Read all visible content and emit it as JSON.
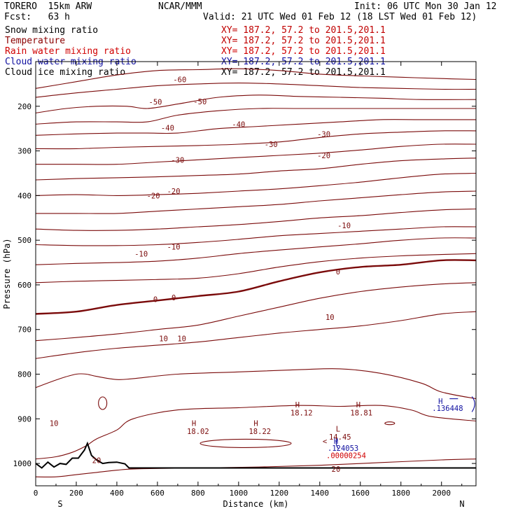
{
  "header": {
    "model": "TORERO  15km ARW",
    "org": "NCAR/MMM",
    "init": "Init: 06 UTC Mon 30 Jan 12",
    "fcst": "Fcst:   63 h",
    "valid": "Valid: 21 UTC Wed 01 Feb 12 (18 LST Wed 01 Feb 12)"
  },
  "legend": [
    {
      "label": "Snow mixing ratio",
      "color": "#000000",
      "xy": "XY= 187.2, 57.2 to 201.5,201.1",
      "xy_color": "#c00000"
    },
    {
      "label": "Temperature",
      "color": "#8b0000",
      "xy": "XY= 187.2, 57.2 to 201.5,201.1",
      "xy_color": "#c00000"
    },
    {
      "label": "Rain water mixing ratio",
      "color": "#d00000",
      "xy": "XY= 187.2, 57.2 to 201.5,201.1",
      "xy_color": "#d00000"
    },
    {
      "label": "Cloud water mixing ratio",
      "color": "#1010a0",
      "xy": "XY= 187.2, 57.2 to 201.5,201.1",
      "xy_color": "#1010a0"
    },
    {
      "label": "Cloud ice mixing ratio",
      "color": "#000000",
      "xy": "XY= 187.2, 57.2 to 201.5,201.1",
      "xy_color": "#000000"
    }
  ],
  "chart_data": {
    "type": "line",
    "title": "",
    "xlabel": "Distance (km)",
    "ylabel": "Pressure (hPa)",
    "xlim": [
      0,
      2170
    ],
    "ylim": [
      100,
      1050
    ],
    "x_ticks": [
      0,
      200,
      400,
      600,
      800,
      1000,
      1200,
      1400,
      1600,
      1800,
      2000
    ],
    "y_ticks": [
      200,
      300,
      400,
      500,
      600,
      700,
      800,
      900,
      1000
    ],
    "endpoints": {
      "left": "S",
      "right": "N"
    },
    "colors": {
      "temperature": "#7a0a0a",
      "terrain": "#000000",
      "cloud": "#1010a0",
      "rain": "#d00000",
      "frame": "#000000"
    },
    "temperature_contours": [
      {
        "level": -60,
        "x": [
          0,
          200,
          400,
          600,
          800,
          1000,
          1200,
          1400,
          1600,
          1800,
          2000,
          2170
        ],
        "p": [
          160,
          145,
          130,
          120,
          118,
          116,
          120,
          128,
          132,
          135,
          138,
          140
        ]
      },
      {
        "level": -55,
        "x": [
          0,
          200,
          400,
          600,
          800,
          1000,
          1200,
          1400,
          1600,
          1800,
          2000,
          2170
        ],
        "p": [
          180,
          170,
          162,
          154,
          150,
          148,
          150,
          154,
          158,
          160,
          162,
          162
        ]
      },
      {
        "level": -50,
        "x": [
          0,
          150,
          300,
          450,
          550,
          700,
          900,
          1100,
          1300,
          1500,
          1700,
          1900,
          2170
        ],
        "p": [
          215,
          205,
          200,
          200,
          205,
          195,
          180,
          175,
          178,
          180,
          182,
          185,
          185
        ]
      },
      {
        "level": -45,
        "x": [
          0,
          200,
          400,
          550,
          700,
          900,
          1100,
          1300,
          1500,
          1700,
          1900,
          2170
        ],
        "p": [
          240,
          235,
          235,
          235,
          220,
          210,
          205,
          205,
          205,
          205,
          205,
          205
        ]
      },
      {
        "level": -40,
        "x": [
          0,
          200,
          400,
          550,
          700,
          900,
          1100,
          1300,
          1500,
          1700,
          1900,
          2170
        ],
        "p": [
          265,
          262,
          260,
          260,
          260,
          250,
          245,
          240,
          235,
          230,
          230,
          230
        ]
      },
      {
        "level": -35,
        "x": [
          0,
          200,
          400,
          600,
          800,
          1000,
          1200,
          1400,
          1600,
          1800,
          2000,
          2170
        ],
        "p": [
          295,
          295,
          292,
          290,
          288,
          285,
          280,
          270,
          262,
          258,
          255,
          255
        ]
      },
      {
        "level": -30,
        "x": [
          0,
          200,
          400,
          600,
          800,
          1000,
          1200,
          1400,
          1600,
          1800,
          2000,
          2170
        ],
        "p": [
          330,
          330,
          330,
          325,
          320,
          315,
          310,
          305,
          298,
          290,
          285,
          285
        ]
      },
      {
        "level": -25,
        "x": [
          0,
          200,
          400,
          600,
          800,
          1000,
          1200,
          1400,
          1600,
          1800,
          2000,
          2170
        ],
        "p": [
          365,
          362,
          360,
          358,
          355,
          352,
          345,
          340,
          330,
          322,
          318,
          316
        ]
      },
      {
        "level": -20,
        "x": [
          0,
          200,
          400,
          600,
          800,
          1000,
          1200,
          1400,
          1600,
          1800,
          2000,
          2170
        ],
        "p": [
          400,
          398,
          400,
          398,
          395,
          390,
          385,
          378,
          370,
          360,
          352,
          350
        ]
      },
      {
        "level": -15,
        "x": [
          0,
          200,
          400,
          600,
          800,
          1000,
          1200,
          1400,
          1600,
          1800,
          2000,
          2170
        ],
        "p": [
          440,
          440,
          440,
          435,
          430,
          425,
          420,
          412,
          405,
          398,
          392,
          390
        ]
      },
      {
        "level": -10,
        "x": [
          0,
          200,
          400,
          600,
          800,
          1000,
          1200,
          1400,
          1600,
          1800,
          2000,
          2170
        ],
        "p": [
          475,
          478,
          478,
          475,
          470,
          465,
          458,
          450,
          445,
          438,
          432,
          430
        ]
      },
      {
        "level": -5,
        "x": [
          0,
          200,
          400,
          600,
          800,
          1000,
          1200,
          1400,
          1600,
          1800,
          2000,
          2170
        ],
        "p": [
          510,
          512,
          512,
          510,
          505,
          498,
          490,
          485,
          480,
          475,
          470,
          470
        ]
      },
      {
        "level": -10,
        "x": [
          0,
          200,
          400,
          600,
          800,
          1000,
          1200,
          1400,
          1600,
          1800,
          2000,
          2170
        ],
        "p": [
          555,
          552,
          550,
          547,
          540,
          530,
          522,
          515,
          508,
          500,
          495,
          495
        ]
      },
      {
        "level": -5,
        "x": [
          0,
          200,
          400,
          600,
          800,
          1000,
          1200,
          1400,
          1600,
          1800,
          2000,
          2170
        ],
        "p": [
          595,
          592,
          590,
          588,
          585,
          575,
          560,
          548,
          540,
          535,
          532,
          530
        ]
      },
      {
        "level": 0,
        "x": [
          0,
          200,
          400,
          600,
          800,
          1000,
          1200,
          1400,
          1600,
          1800,
          2000,
          2170
        ],
        "p": [
          665,
          660,
          645,
          635,
          625,
          615,
          592,
          572,
          560,
          555,
          545,
          545
        ]
      },
      {
        "level": 5,
        "x": [
          0,
          200,
          400,
          600,
          800,
          1000,
          1200,
          1400,
          1600,
          1800,
          2000,
          2170
        ],
        "p": [
          725,
          718,
          710,
          700,
          690,
          670,
          650,
          630,
          615,
          605,
          598,
          595
        ]
      },
      {
        "level": 10,
        "x": [
          0,
          200,
          400,
          600,
          800,
          1000,
          1200,
          1400,
          1600,
          1800,
          2000,
          2170
        ],
        "p": [
          765,
          752,
          742,
          735,
          728,
          718,
          708,
          700,
          692,
          680,
          665,
          660
        ]
      }
    ],
    "terrain": {
      "x": [
        0,
        30,
        60,
        90,
        120,
        150,
        180,
        210,
        240,
        255,
        275,
        300,
        330,
        360,
        400,
        440,
        460,
        480,
        2170
      ],
      "p": [
        1000,
        1010,
        997,
        1008,
        1000,
        1002,
        988,
        988,
        970,
        955,
        982,
        992,
        1000,
        998,
        997,
        1001,
        1010,
        1010,
        1010
      ]
    },
    "contour_labels": [
      {
        "text": "-60",
        "x": 710,
        "p": 140
      },
      {
        "text": "-50",
        "x": 590,
        "p": 190
      },
      {
        "text": "-50",
        "x": 810,
        "p": 189
      },
      {
        "text": "-40",
        "x": 650,
        "p": 248
      },
      {
        "text": "-40",
        "x": 1000,
        "p": 240
      },
      {
        "text": "-30",
        "x": 1160,
        "p": 285
      },
      {
        "text": "-30",
        "x": 1420,
        "p": 262
      },
      {
        "text": "-30",
        "x": 700,
        "p": 320
      },
      {
        "text": "-20",
        "x": 1420,
        "p": 310
      },
      {
        "text": "-20",
        "x": 680,
        "p": 390
      },
      {
        "text": "-20",
        "x": 580,
        "p": 400
      },
      {
        "text": "-10",
        "x": 1520,
        "p": 467
      },
      {
        "text": "-10",
        "x": 680,
        "p": 515
      },
      {
        "text": "-10",
        "x": 520,
        "p": 530
      },
      {
        "text": "0",
        "x": 1490,
        "p": 570
      },
      {
        "text": "0",
        "x": 680,
        "p": 628
      },
      {
        "text": "0",
        "x": 590,
        "p": 632
      },
      {
        "text": "10",
        "x": 1450,
        "p": 672
      },
      {
        "text": "10",
        "x": 720,
        "p": 720
      },
      {
        "text": "10",
        "x": 630,
        "p": 720
      },
      {
        "text": "10",
        "x": 90,
        "p": 910
      },
      {
        "text": "20",
        "x": 300,
        "p": 993
      },
      {
        "text": "20",
        "x": 1480,
        "p": 1012
      }
    ],
    "annotations": [
      {
        "text": "H",
        "x": 780,
        "p": 910,
        "color": "#7a0a0a"
      },
      {
        "text": "18.02",
        "x": 800,
        "p": 928,
        "color": "#7a0a0a"
      },
      {
        "text": "H",
        "x": 1085,
        "p": 910,
        "color": "#7a0a0a"
      },
      {
        "text": "18.22",
        "x": 1105,
        "p": 928,
        "color": "#7a0a0a"
      },
      {
        "text": "H",
        "x": 1290,
        "p": 868,
        "color": "#7a0a0a"
      },
      {
        "text": "18.12",
        "x": 1310,
        "p": 886,
        "color": "#7a0a0a"
      },
      {
        "text": "H",
        "x": 1590,
        "p": 868,
        "color": "#7a0a0a"
      },
      {
        "text": "18.81",
        "x": 1605,
        "p": 886,
        "color": "#7a0a0a"
      },
      {
        "text": "L",
        "x": 1490,
        "p": 922,
        "color": "#7a0a0a"
      },
      {
        "text": "14.45",
        "x": 1500,
        "p": 940,
        "color": "#7a0a0a"
      },
      {
        "text": "H",
        "x": 1480,
        "p": 950,
        "color": "#1010a0"
      },
      {
        "text": ".124053",
        "x": 1515,
        "p": 965,
        "color": "#1010a0"
      },
      {
        "text": ".00000254",
        "x": 1530,
        "p": 982,
        "color": "#d00000"
      },
      {
        "text": "<",
        "x": 1425,
        "p": 950,
        "color": "#7a0a0a"
      },
      {
        "text": "H",
        "x": 1995,
        "p": 860,
        "color": "#1010a0"
      },
      {
        "text": ".136448",
        "x": 2030,
        "p": 876,
        "color": "#1010a0"
      }
    ]
  }
}
